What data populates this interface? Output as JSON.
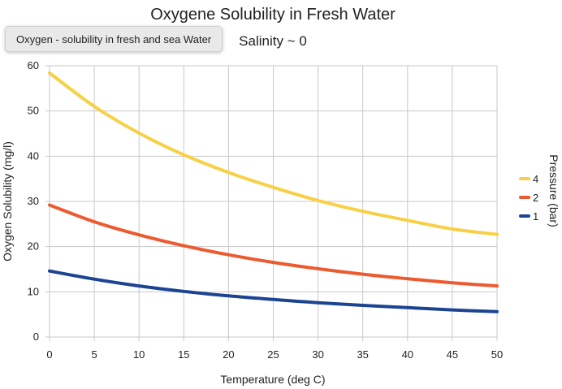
{
  "tooltip": "Oxygen - solubility in fresh and sea Water",
  "chart_data": {
    "type": "line",
    "title": "Oxygene Solubility in Fresh Water",
    "subtitle": "Salinity ~ 0",
    "xlabel": "Temperature (deg C)",
    "ylabel": "Oxygen Solubility (mg/l)",
    "xlim": [
      0,
      50
    ],
    "ylim": [
      0,
      60
    ],
    "x_ticks": [
      0,
      5,
      10,
      15,
      20,
      25,
      30,
      35,
      40,
      45,
      50
    ],
    "y_ticks": [
      0,
      10,
      20,
      30,
      40,
      50,
      60
    ],
    "grid": true,
    "legend_title": "Pressure (bar)",
    "legend_position": "right",
    "x": [
      0,
      5,
      10,
      15,
      20,
      25,
      30,
      35,
      40,
      45,
      50
    ],
    "series": [
      {
        "name": "4",
        "color": "#f7d046",
        "values": [
          58.4,
          51.0,
          45.1,
          40.3,
          36.4,
          33.1,
          30.2,
          27.8,
          25.8,
          23.9,
          22.7
        ]
      },
      {
        "name": "2",
        "color": "#ec5b30",
        "values": [
          29.2,
          25.5,
          22.6,
          20.2,
          18.2,
          16.5,
          15.1,
          13.9,
          12.9,
          12.0,
          11.3
        ]
      },
      {
        "name": "1",
        "color": "#1d4491",
        "values": [
          14.6,
          12.8,
          11.3,
          10.1,
          9.1,
          8.3,
          7.6,
          7.0,
          6.5,
          6.0,
          5.6
        ]
      }
    ]
  }
}
